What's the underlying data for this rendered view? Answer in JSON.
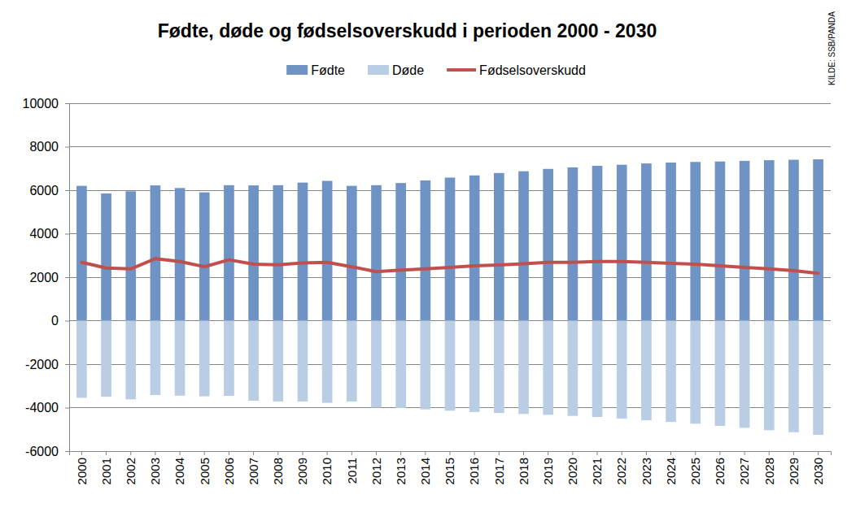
{
  "chart_data": {
    "type": "bar",
    "title": "Fødte, døde og fødselsoverskudd i perioden 2000 - 2030",
    "annotations": [
      "KILDE: SSB/PANDA"
    ],
    "categories": [
      "2000",
      "2001",
      "2002",
      "2003",
      "2004",
      "2005",
      "2006",
      "2007",
      "2008",
      "2009",
      "2010",
      "2011",
      "2012",
      "2013",
      "2014",
      "2015",
      "2016",
      "2017",
      "2018",
      "2019",
      "2020",
      "2021",
      "2022",
      "2023",
      "2024",
      "2025",
      "2026",
      "2027",
      "2028",
      "2029",
      "2030"
    ],
    "series": [
      {
        "name": "Fødte",
        "type": "bar",
        "color": "#6f93c4",
        "values": [
          6200,
          5850,
          5950,
          6220,
          6100,
          5900,
          6230,
          6220,
          6230,
          6350,
          6430,
          6200,
          6230,
          6330,
          6450,
          6580,
          6680,
          6790,
          6870,
          6980,
          7050,
          7120,
          7170,
          7230,
          7270,
          7300,
          7320,
          7350,
          7380,
          7400,
          7420
        ]
      },
      {
        "name": "Døde",
        "type": "bar",
        "color": "#b9cde5",
        "values": [
          -3550,
          -3500,
          -3620,
          -3420,
          -3450,
          -3480,
          -3460,
          -3680,
          -3720,
          -3720,
          -3780,
          -3720,
          -4000,
          -4020,
          -4080,
          -4140,
          -4200,
          -4250,
          -4290,
          -4330,
          -4380,
          -4430,
          -4500,
          -4580,
          -4660,
          -4740,
          -4840,
          -4930,
          -5040,
          -5130,
          -5250
        ]
      },
      {
        "name": "Fødselsoverskudd",
        "type": "line",
        "color": "#c0504d",
        "values": [
          2680,
          2420,
          2380,
          2850,
          2720,
          2480,
          2800,
          2600,
          2570,
          2650,
          2680,
          2480,
          2250,
          2330,
          2380,
          2450,
          2520,
          2560,
          2620,
          2680,
          2680,
          2720,
          2720,
          2680,
          2640,
          2600,
          2520,
          2450,
          2380,
          2300,
          2180
        ]
      }
    ],
    "ylim": [
      -6000,
      10000
    ],
    "yticks": [
      -6000,
      -4000,
      -2000,
      0,
      2000,
      4000,
      6000,
      8000,
      10000
    ],
    "grid": true,
    "legend": "top"
  }
}
